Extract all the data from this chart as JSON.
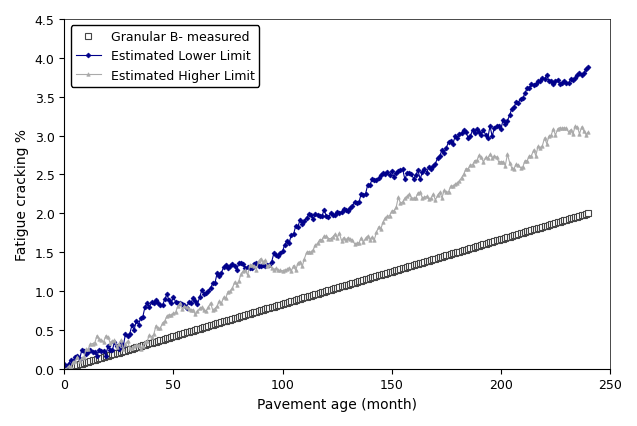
{
  "title": "",
  "xlabel": "Pavement age (month)",
  "ylabel": "Fatigue cracking %",
  "xlim": [
    0,
    250
  ],
  "ylim": [
    0,
    4.5
  ],
  "xticks": [
    0,
    50,
    100,
    150,
    200,
    250
  ],
  "yticks": [
    0,
    0.5,
    1.0,
    1.5,
    2.0,
    2.5,
    3.0,
    3.5,
    4.0,
    4.5
  ],
  "series": [
    {
      "label": "Granular B- measured",
      "color": "#666666",
      "marker": "s",
      "markersize": 4,
      "linewidth": 0.0,
      "end_value": 2.0,
      "noise_amplitude": 0.0,
      "marker_every": 1,
      "markerfacecolor": "white",
      "markeredgecolor": "#444444",
      "markeredgewidth": 0.8
    },
    {
      "label": "Estimated Lower Limit",
      "color": "#00008B",
      "marker": "D",
      "markersize": 2.5,
      "linewidth": 0.8,
      "end_value": 3.9,
      "noise_amplitude": 0.12,
      "marker_every": 1,
      "markerfacecolor": "#00008B",
      "markeredgecolor": "#00008B",
      "markeredgewidth": 0.5
    },
    {
      "label": "Estimated Higher Limit",
      "color": "#AAAAAA",
      "marker": "^",
      "markersize": 2.5,
      "linewidth": 0.8,
      "end_value": 3.2,
      "noise_amplitude": 0.12,
      "marker_every": 1,
      "markerfacecolor": "#AAAAAA",
      "markeredgecolor": "#AAAAAA",
      "markeredgewidth": 0.5
    }
  ],
  "n_points": 241,
  "x_start": 0,
  "x_end": 240,
  "legend_loc": "upper left",
  "legend_fontsize": 9,
  "axis_fontsize": 10,
  "tick_fontsize": 9,
  "background_color": "#ffffff",
  "noise_seeds": [
    42,
    7,
    13
  ],
  "wave_freq": 0.18,
  "wave_freq2": 0.07
}
